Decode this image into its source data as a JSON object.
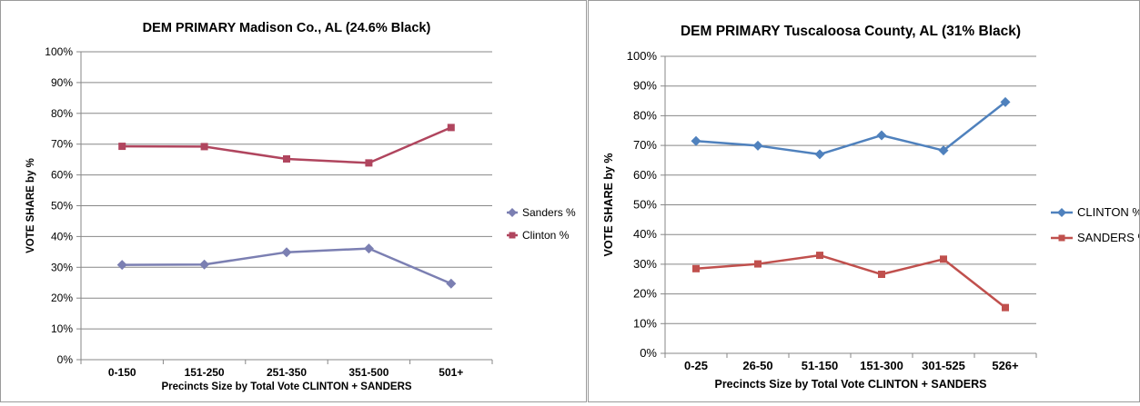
{
  "chart_data": [
    {
      "type": "line",
      "title": "DEM PRIMARY Madison Co., AL (24.6% Black)",
      "xlabel": "Precincts Size by Total Vote CLINTON + SANDERS",
      "ylabel": "VOTE SHARE by %",
      "categories": [
        "0-150",
        "151-250",
        "251-350",
        "351-500",
        "501+"
      ],
      "ylim": [
        0,
        100
      ],
      "yticks": [
        0,
        10,
        20,
        30,
        40,
        50,
        60,
        70,
        80,
        90,
        100
      ],
      "ytick_labels": [
        "0%",
        "10%",
        "20%",
        "30%",
        "40%",
        "50%",
        "60%",
        "70%",
        "80%",
        "90%",
        "100%"
      ],
      "grid": true,
      "legend_position": "right",
      "series": [
        {
          "name": "Sanders %",
          "marker": "diamond",
          "color": "#7b7fb2",
          "values": [
            30.8,
            30.9,
            34.9,
            36.1,
            24.7
          ]
        },
        {
          "name": "Clinton %",
          "marker": "square",
          "color": "#b0455e",
          "values": [
            69.3,
            69.2,
            65.2,
            63.9,
            75.4
          ]
        }
      ]
    },
    {
      "type": "line",
      "title": "DEM PRIMARY Tuscaloosa County, AL (31% Black)",
      "xlabel": "Precincts Size by Total Vote CLINTON + SANDERS",
      "ylabel": "VOTE SHARE by %",
      "categories": [
        "0-25",
        "26-50",
        "51-150",
        "151-300",
        "301-525",
        "526+"
      ],
      "ylim": [
        0,
        100
      ],
      "yticks": [
        0,
        10,
        20,
        30,
        40,
        50,
        60,
        70,
        80,
        90,
        100
      ],
      "ytick_labels": [
        "0%",
        "10%",
        "20%",
        "30%",
        "40%",
        "50%",
        "60%",
        "70%",
        "80%",
        "90%",
        "100%"
      ],
      "grid": true,
      "legend_position": "right",
      "series": [
        {
          "name": "CLINTON %",
          "marker": "diamond",
          "color": "#4f81bd",
          "values": [
            71.5,
            69.9,
            67.0,
            73.4,
            68.3,
            84.6
          ]
        },
        {
          "name": "SANDERS %",
          "marker": "square",
          "color": "#c0504d",
          "values": [
            28.5,
            30.1,
            33.0,
            26.6,
            31.7,
            15.4
          ]
        }
      ]
    }
  ]
}
